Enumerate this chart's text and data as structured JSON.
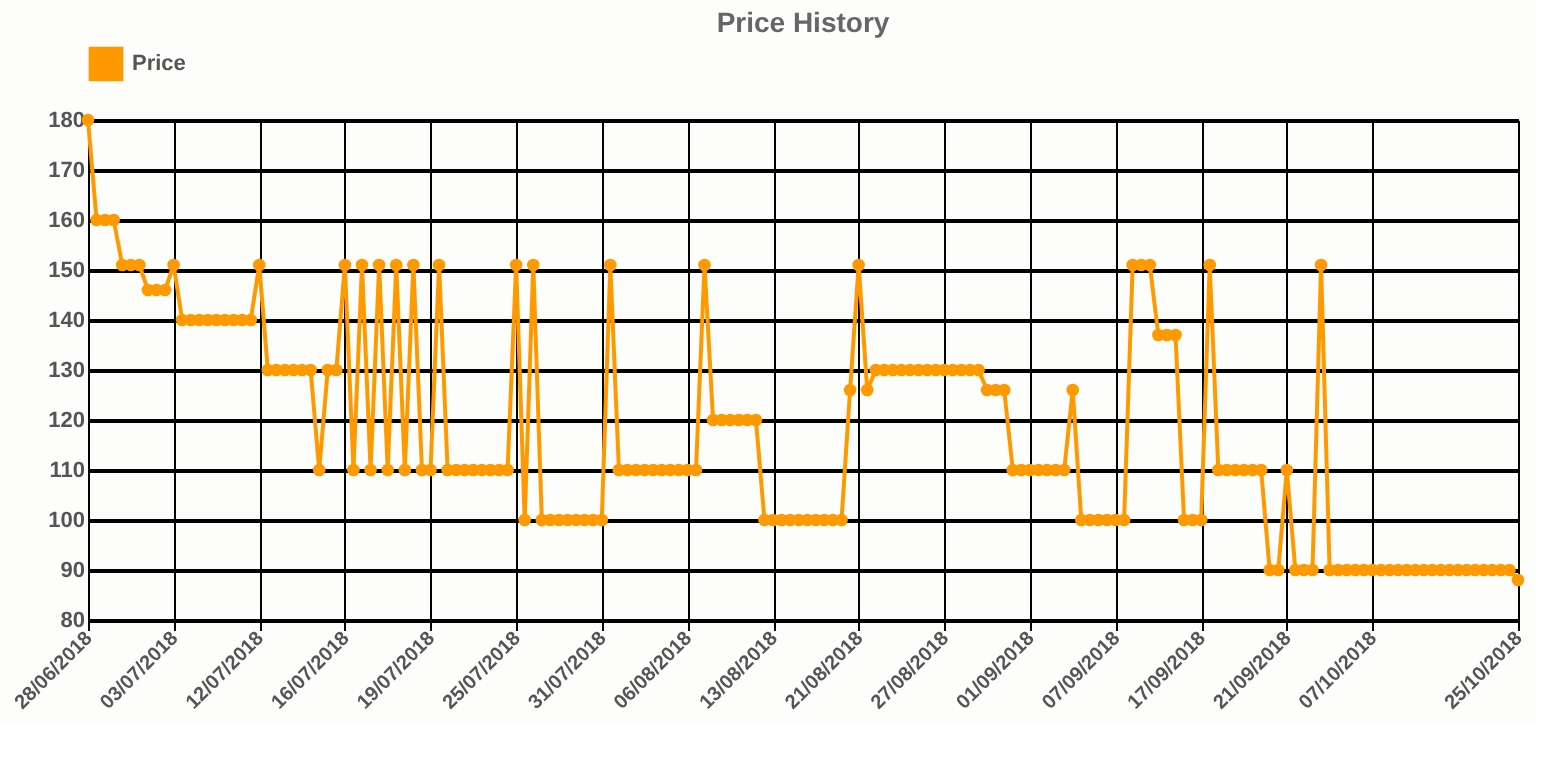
{
  "chart_data": {
    "type": "line",
    "title": "Price History",
    "categories": [
      "28/06/2018",
      null,
      null,
      null,
      null,
      null,
      null,
      null,
      null,
      null,
      "03/07/2018",
      null,
      null,
      null,
      null,
      null,
      null,
      null,
      null,
      null,
      "12/07/2018",
      null,
      null,
      null,
      null,
      null,
      null,
      null,
      null,
      null,
      "16/07/2018",
      null,
      null,
      null,
      null,
      null,
      null,
      null,
      null,
      null,
      "19/07/2018",
      null,
      null,
      null,
      null,
      null,
      null,
      null,
      null,
      null,
      "25/07/2018",
      null,
      null,
      null,
      null,
      null,
      null,
      null,
      null,
      null,
      "31/07/2018",
      null,
      null,
      null,
      null,
      null,
      null,
      null,
      null,
      null,
      "06/08/2018",
      null,
      null,
      null,
      null,
      null,
      null,
      null,
      null,
      null,
      "13/08/2018",
      null,
      null,
      null,
      null,
      null,
      null,
      null,
      null,
      null,
      "21/08/2018",
      null,
      null,
      null,
      null,
      null,
      null,
      null,
      null,
      null,
      "27/08/2018",
      null,
      null,
      null,
      null,
      null,
      null,
      null,
      null,
      null,
      "01/09/2018",
      null,
      null,
      null,
      null,
      null,
      null,
      null,
      null,
      null,
      "07/09/2018",
      null,
      null,
      null,
      null,
      null,
      null,
      null,
      null,
      null,
      "17/09/2018",
      null,
      null,
      null,
      null,
      null,
      null,
      null,
      null,
      null,
      "21/09/2018",
      null,
      null,
      null,
      null,
      null,
      null,
      null,
      null,
      null,
      "07/10/2018",
      null,
      null,
      null,
      null,
      null,
      null,
      null,
      null,
      null,
      null,
      null,
      null,
      null,
      null,
      null,
      null,
      "25/10/2018"
    ],
    "series": [
      {
        "name": "Price",
        "color": "#ff9900",
        "values": [
          180,
          160,
          160,
          160,
          151,
          151,
          151,
          146,
          146,
          146,
          151,
          140,
          140,
          140,
          140,
          140,
          140,
          140,
          140,
          140,
          151,
          130,
          130,
          130,
          130,
          130,
          130,
          110,
          130,
          130,
          151,
          110,
          151,
          110,
          151,
          110,
          151,
          110,
          151,
          110,
          110,
          151,
          110,
          110,
          110,
          110,
          110,
          110,
          110,
          110,
          151,
          100,
          151,
          100,
          100,
          100,
          100,
          100,
          100,
          100,
          100,
          151,
          110,
          110,
          110,
          110,
          110,
          110,
          110,
          110,
          110,
          110,
          151,
          120,
          120,
          120,
          120,
          120,
          120,
          100,
          100,
          100,
          100,
          100,
          100,
          100,
          100,
          100,
          100,
          126,
          151,
          126,
          130,
          130,
          130,
          130,
          130,
          130,
          130,
          130,
          130,
          130,
          130,
          130,
          130,
          126,
          126,
          126,
          110,
          110,
          110,
          110,
          110,
          110,
          110,
          126,
          100,
          100,
          100,
          100,
          100,
          100,
          151,
          151,
          151,
          137,
          137,
          137,
          100,
          100,
          100,
          151,
          110,
          110,
          110,
          110,
          110,
          110,
          90,
          90,
          110,
          90,
          90,
          90,
          151,
          90,
          90,
          90,
          90,
          90,
          90,
          90,
          90,
          90,
          90,
          90,
          90,
          90,
          90,
          90,
          90,
          90,
          90,
          90,
          90,
          90,
          90,
          88
        ]
      }
    ],
    "ylim": [
      80,
      180
    ],
    "yticks": [
      80,
      90,
      100,
      110,
      120,
      130,
      140,
      150,
      160,
      170,
      180
    ],
    "grid": true,
    "legend": "top",
    "marker": "circle",
    "line_style": "solid"
  }
}
